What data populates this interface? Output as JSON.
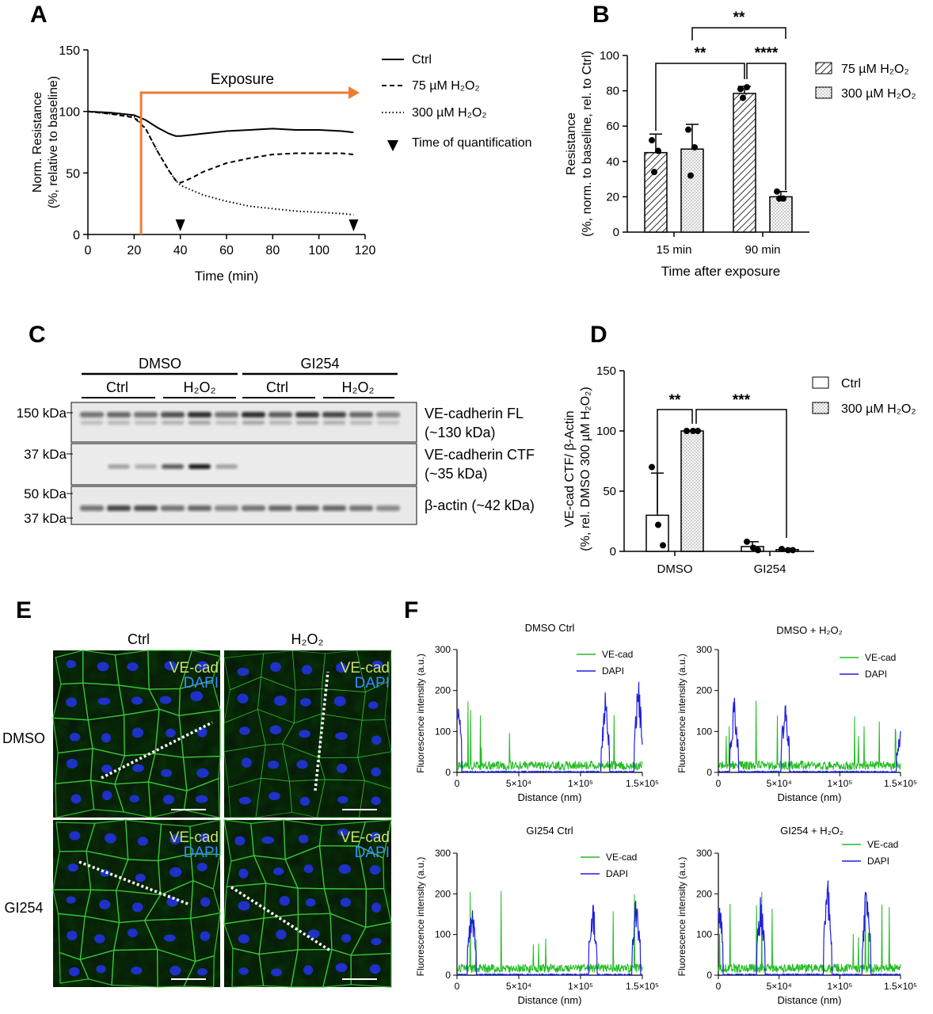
{
  "panels": {
    "A": "A",
    "B": "B",
    "C": "C",
    "D": "D",
    "E": "E",
    "F": "F"
  },
  "chart_data": [
    {
      "panel": "A",
      "type": "line",
      "xlabel": "Time (min)",
      "ylabel_line1": "Norm. Resistance",
      "ylabel_line2": "(%, relative to baseline)",
      "xlim": [
        0,
        120
      ],
      "ylim": [
        0,
        150
      ],
      "xticks": [
        0,
        20,
        40,
        60,
        80,
        100,
        120
      ],
      "yticks": [
        0,
        50,
        100,
        150
      ],
      "annotation": "Exposure",
      "exposure_start": 23,
      "legend": [
        "Ctrl",
        "75 µM H₂O₂",
        "300 µM H₂O₂",
        "Time of quantification"
      ],
      "quantification_times": [
        40,
        115
      ],
      "colors": {
        "exposure": "#ed7d31",
        "lines": "#000000"
      },
      "series": [
        {
          "name": "Ctrl",
          "style": "solid",
          "x": [
            0,
            10,
            20,
            25,
            30,
            35,
            38,
            40,
            45,
            50,
            60,
            70,
            80,
            90,
            100,
            110,
            115
          ],
          "y": [
            100,
            99,
            97,
            93,
            87,
            82,
            80,
            80,
            81,
            82,
            84,
            85,
            86,
            85,
            85,
            84,
            83
          ]
        },
        {
          "name": "75 µM H₂O₂",
          "style": "dashed",
          "x": [
            0,
            10,
            20,
            25,
            30,
            35,
            38,
            40,
            45,
            50,
            60,
            70,
            80,
            90,
            100,
            110,
            115
          ],
          "y": [
            100,
            98,
            95,
            86,
            68,
            52,
            44,
            42,
            46,
            51,
            58,
            62,
            65,
            66,
            66,
            66,
            65
          ]
        },
        {
          "name": "300 µM H₂O₂",
          "style": "dotted",
          "x": [
            0,
            10,
            20,
            25,
            30,
            35,
            38,
            40,
            45,
            50,
            60,
            70,
            80,
            90,
            100,
            110,
            115
          ],
          "y": [
            100,
            98,
            96,
            86,
            68,
            52,
            44,
            40,
            36,
            32,
            27,
            23,
            21,
            19,
            18,
            17,
            16
          ]
        }
      ]
    },
    {
      "panel": "B",
      "type": "bar",
      "xlabel": "Time after exposure",
      "ylabel_line1": "Resistance",
      "ylabel_line2": "(%, norm. to baseline, rel. to Ctrl)",
      "ylim": [
        0,
        100
      ],
      "yticks": [
        0,
        20,
        40,
        60,
        80,
        100
      ],
      "categories": [
        "15 min",
        "90 min"
      ],
      "series": [
        {
          "name": "75 µM H₂O₂",
          "fill": "hatched",
          "values": [
            45,
            78.5
          ],
          "errors": [
            10.5,
            4
          ],
          "points": [
            [
              52,
              46,
              34
            ],
            [
              81,
              82,
              76
            ]
          ]
        },
        {
          "name": "300 µM H₂O₂",
          "fill": "dotted",
          "values": [
            47,
            20
          ],
          "errors": [
            14,
            3
          ],
          "points": [
            [
              58,
              48,
              32
            ],
            [
              23,
              19,
              19
            ]
          ]
        }
      ],
      "significance": [
        "**",
        "**",
        "****"
      ]
    },
    {
      "panel": "D",
      "type": "bar",
      "ylabel_line1": "VE-cad CTF/ β-Actin",
      "ylabel_line2": "(%, rel. DMSO 300 µM H₂O₂)",
      "ylim": [
        0,
        150
      ],
      "yticks": [
        0,
        50,
        100,
        150
      ],
      "categories": [
        "DMSO",
        "GI254"
      ],
      "series": [
        {
          "name": "Ctrl",
          "fill": "white",
          "values": [
            30,
            4
          ],
          "errors": [
            35,
            4
          ],
          "points": [
            [
              70,
              22,
              5
            ],
            [
              8,
              3,
              1
            ]
          ]
        },
        {
          "name": "300 µM H₂O₂",
          "fill": "dotted",
          "values": [
            100,
            1.5
          ],
          "errors": [
            0,
            0.5
          ],
          "points": [
            [
              100,
              100,
              100
            ],
            [
              2,
              1,
              1
            ]
          ]
        }
      ],
      "significance": [
        "**",
        "***"
      ]
    },
    {
      "panel": "F",
      "type": "line",
      "subplots": [
        {
          "title": "DMSO Ctrl",
          "dapi_peaks": [
            [
              0.2,
              230
            ],
            [
              120,
              200
            ],
            [
              147,
              250
            ]
          ]
        },
        {
          "title": "DMSO + H₂O₂",
          "dapi_peaks": [
            [
              13,
              190
            ],
            [
              55,
              190
            ],
            [
              150,
              120
            ]
          ]
        },
        {
          "title": "GI254 Ctrl",
          "dapi_peaks": [
            [
              12,
              205
            ],
            [
              110,
              200
            ],
            [
              145,
              210
            ]
          ]
        },
        {
          "title": "GI254 + H₂O₂",
          "dapi_peaks": [
            [
              0.2,
              255
            ],
            [
              35,
              210
            ],
            [
              90,
              255
            ],
            [
              122,
              250
            ]
          ]
        }
      ],
      "xlabel": "Distance (nm)",
      "ylabel": "Fluorescence intensity (a.u.)",
      "ylim": [
        0,
        300
      ],
      "yticks": [
        0,
        100,
        200,
        300
      ],
      "xticklabels": [
        "0",
        "5×10⁴",
        "1×10⁵",
        "1.5×10⁵"
      ],
      "legend": [
        "VE-cad",
        "DAPI"
      ],
      "colors": {
        "VE-cad": "#22bb22",
        "DAPI": "#1f1fdd"
      }
    }
  ],
  "blot": {
    "groups": [
      "DMSO",
      "GI254"
    ],
    "subgroups": [
      "Ctrl",
      "H₂O₂",
      "Ctrl",
      "H₂O₂"
    ],
    "markers": [
      "150 kDa",
      "37 kDa",
      "50 kDa",
      "37 kDa"
    ],
    "bands": [
      "VE-cadherin FL",
      "(~130 kDa)",
      "VE-cadherin CTF",
      "(~35 kDa)",
      "β-actin (~42 kDa)"
    ]
  },
  "micro": {
    "cols": [
      "Ctrl",
      "H₂O₂"
    ],
    "rows": [
      "DMSO",
      "GI254"
    ],
    "label1": "VE-cad",
    "label2": "DAPI"
  }
}
